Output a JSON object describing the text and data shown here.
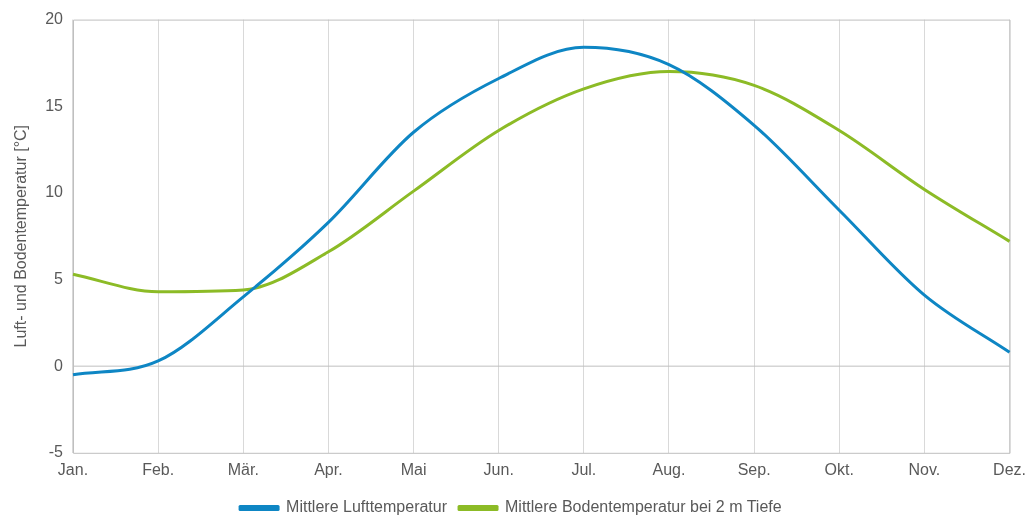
{
  "chart_data": {
    "type": "line",
    "ylabel": "Luft- und Bodentemperatur [°C]",
    "categories": [
      "Jan.",
      "Feb.",
      "Mär.",
      "Apr.",
      "Mai",
      "Jun.",
      "Jul.",
      "Aug.",
      "Sep.",
      "Okt.",
      "Nov.",
      "Dez."
    ],
    "series": [
      {
        "name": "Mittlere Lufttemperatur",
        "color": "#0e86c4",
        "values": [
          -0.5,
          0.3,
          4.0,
          8.3,
          13.5,
          16.6,
          18.4,
          17.4,
          13.9,
          9.0,
          4.1,
          0.8
        ]
      },
      {
        "name": "Mittlere Bodentemperatur bei 2 m Tiefe",
        "color": "#8cbb26",
        "values": [
          5.3,
          4.3,
          4.4,
          6.6,
          10.1,
          13.6,
          16.0,
          17.0,
          16.2,
          13.6,
          10.2,
          7.2
        ]
      }
    ],
    "ylim": [
      -5,
      20
    ],
    "yticks": [
      -5,
      0,
      5,
      10,
      15,
      20
    ],
    "grid": "x",
    "legend": "bottom",
    "marker": "none",
    "line_style": "solid",
    "ref_lines": [
      {
        "axis": "y",
        "value": 0,
        "color": "#bfbfbf"
      }
    ]
  }
}
